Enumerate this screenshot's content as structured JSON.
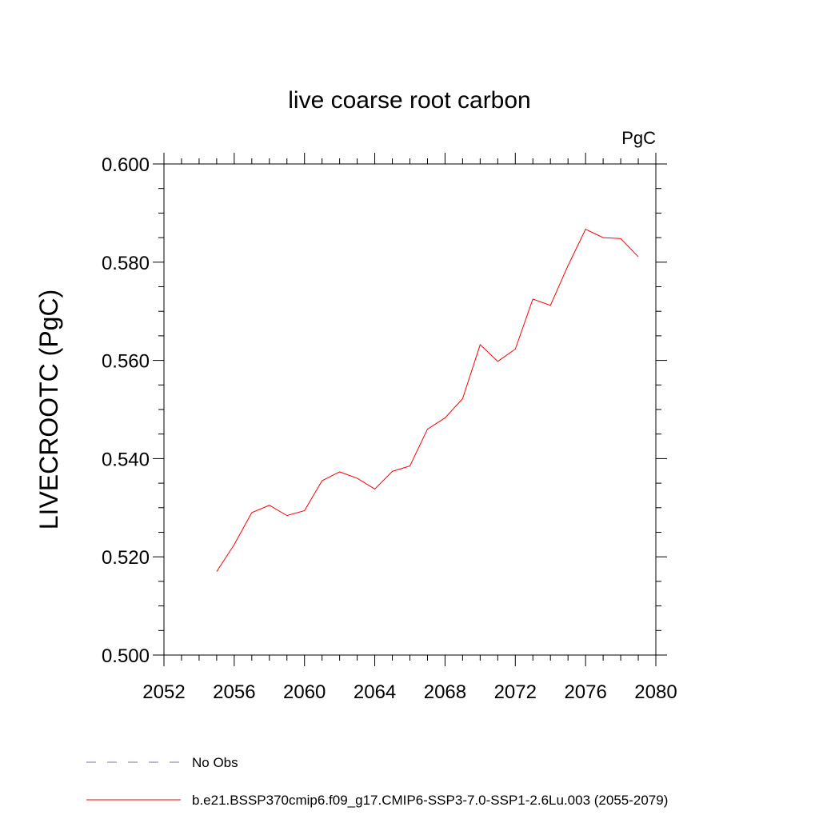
{
  "chart_data": {
    "type": "line",
    "title": "live coarse root carbon",
    "units": "PgC",
    "ylabel": "LIVECROOTC  (PgC)",
    "xlabel": "",
    "xlim": [
      2052,
      2080
    ],
    "ylim": [
      0.5,
      0.6
    ],
    "x_ticks": [
      "2052",
      "2056",
      "2060",
      "2064",
      "2068",
      "2072",
      "2076",
      "2080"
    ],
    "y_ticks": [
      "0.500",
      "0.520",
      "0.540",
      "0.560",
      "0.580",
      "0.600"
    ],
    "grid": false,
    "legend_position": "bottom",
    "series": [
      {
        "name": "b.e21.BSSP370cmip6.f09_g17.CMIP6-SSP3-7.0-SSP1-2.6Lu.003 (2055-2079)",
        "color": "#ff0000",
        "style": "solid",
        "x": [
          2055,
          2056,
          2057,
          2058,
          2059,
          2060,
          2061,
          2062,
          2063,
          2064,
          2065,
          2066,
          2067,
          2068,
          2069,
          2070,
          2071,
          2072,
          2073,
          2074,
          2075,
          2076,
          2077,
          2078,
          2079
        ],
        "values": [
          0.517,
          0.5225,
          0.529,
          0.5305,
          0.5284,
          0.5294,
          0.5355,
          0.5373,
          0.536,
          0.5338,
          0.5374,
          0.5385,
          0.546,
          0.5483,
          0.5522,
          0.5632,
          0.5598,
          0.5623,
          0.5725,
          0.5712,
          0.5793,
          0.5867,
          0.585,
          0.5848,
          0.5811
        ]
      }
    ],
    "legend": [
      {
        "label": "No Obs",
        "color": "#7f6fb0",
        "style": "dashed"
      },
      {
        "label": "b.e21.BSSP370cmip6.f09_g17.CMIP6-SSP3-7.0-SSP1-2.6Lu.003 (2055-2079)",
        "color": "#ff0000",
        "style": "solid"
      }
    ]
  }
}
